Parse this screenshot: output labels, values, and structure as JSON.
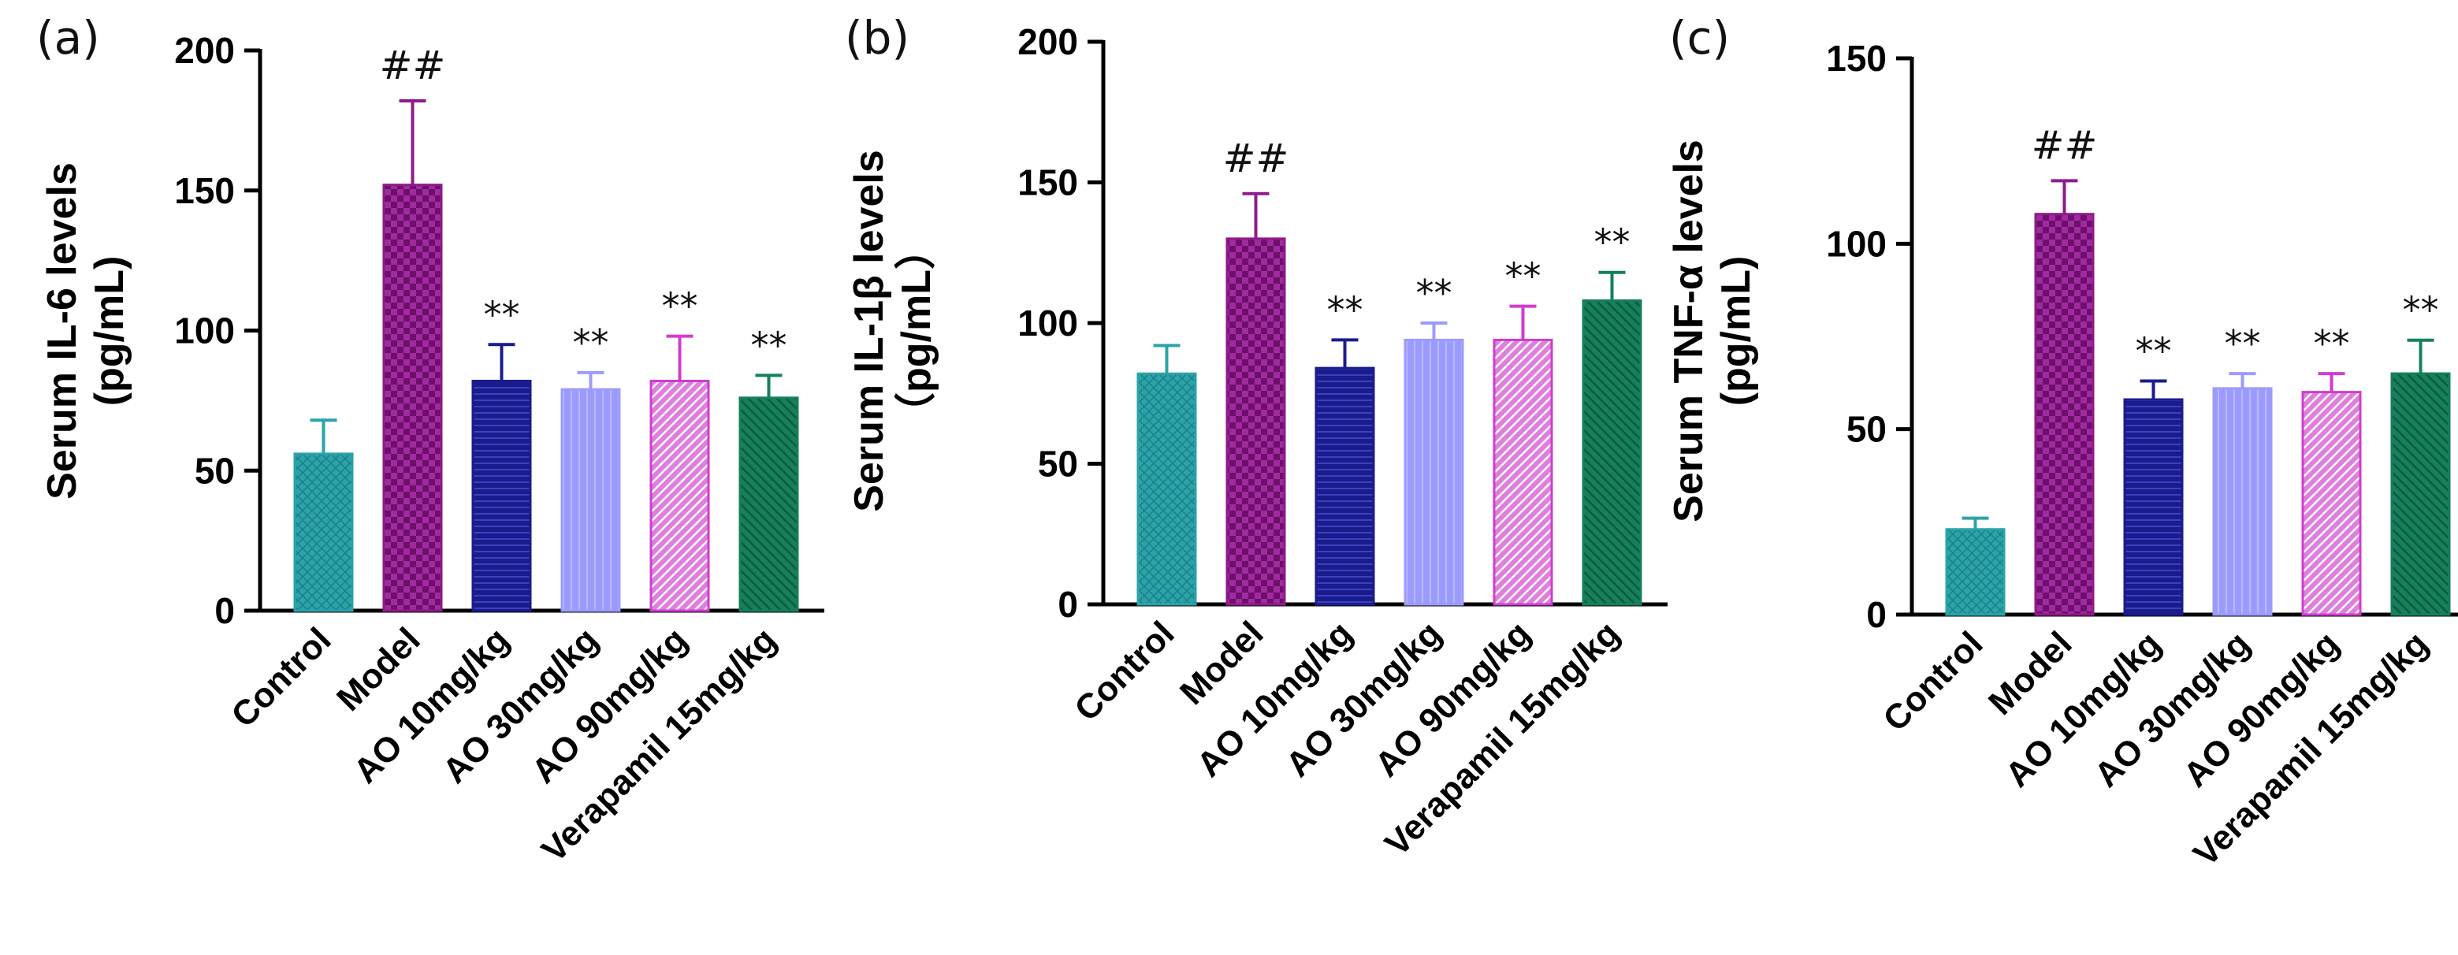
{
  "colors": {
    "control": "#2aa3a9",
    "model": "#8e1a8c",
    "ao10": "#1a1c8c",
    "ao30": "#9b9bff",
    "ao90": "#d13ccf",
    "verapamil": "#15805a"
  },
  "chart_data": [
    {
      "type": "bar",
      "panel_label": "(a)",
      "ylabel_line1": "Serum IL-6 levels",
      "ylabel_line2": "(pg/mL)",
      "ylim": [
        0,
        200
      ],
      "yticks": [
        0,
        50,
        100,
        150,
        200
      ],
      "categories": [
        "Control",
        "Model",
        "AO 10mg/kg",
        "AO 30mg/kg",
        "AO 90mg/kg",
        "Verapamil 15mg/kg"
      ],
      "values": [
        56,
        152,
        82,
        79,
        82,
        76
      ],
      "errors": [
        12,
        30,
        13,
        6,
        16,
        8
      ],
      "annotations": [
        "",
        "##",
        "**",
        "**",
        "**",
        "**"
      ]
    },
    {
      "type": "bar",
      "panel_label": "(b)",
      "ylabel_line1": "Serum IL-1β levels",
      "ylabel_line2": "（pg/mL）",
      "ylim": [
        0,
        200
      ],
      "yticks": [
        0,
        50,
        100,
        150,
        200
      ],
      "categories": [
        "Control",
        "Model",
        "AO 10mg/kg",
        "AO 30mg/kg",
        "AO 90mg/kg",
        "Verapamil 15mg/kg"
      ],
      "values": [
        82,
        130,
        84,
        94,
        94,
        108
      ],
      "errors": [
        10,
        16,
        10,
        6,
        12,
        10
      ],
      "annotations": [
        "",
        "##",
        "**",
        "**",
        "**",
        "**"
      ]
    },
    {
      "type": "bar",
      "panel_label": "(c)",
      "ylabel_line1": "Serum TNF-α levels",
      "ylabel_line2": "(pg/mL)",
      "ylim": [
        0,
        150
      ],
      "yticks": [
        0,
        50,
        100,
        150
      ],
      "categories": [
        "Control",
        "Model",
        "AO 10mg/kg",
        "AO 30mg/kg",
        "AO 90mg/kg",
        "Verapamil 15mg/kg"
      ],
      "values": [
        23,
        108,
        58,
        61,
        60,
        65
      ],
      "errors": [
        3,
        9,
        5,
        4,
        5,
        9
      ],
      "annotations": [
        "",
        "##",
        "**",
        "**",
        "**",
        "**"
      ]
    }
  ]
}
